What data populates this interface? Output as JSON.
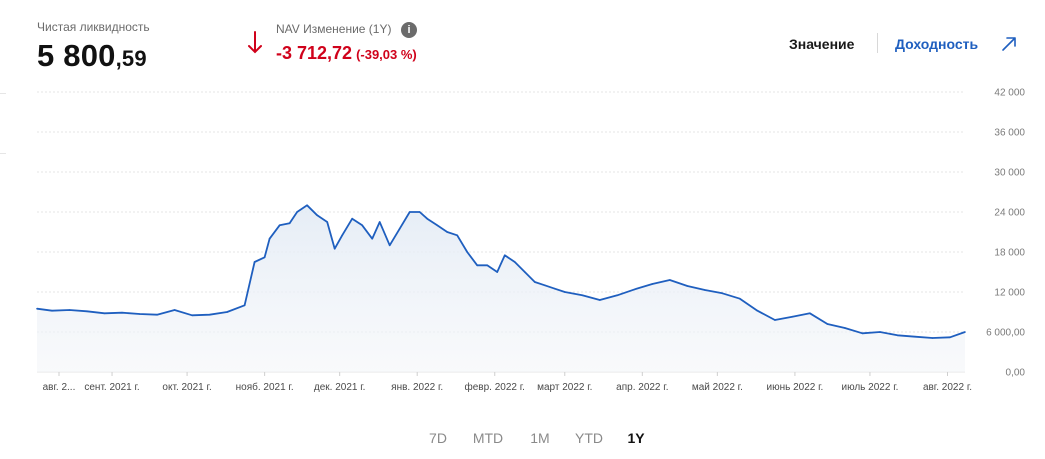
{
  "header": {
    "liquidity_label": "Чистая ликвидность",
    "liquidity_int": "5 800",
    "liquidity_dec": ",59",
    "nav_label": "NAV Изменение (1Y)",
    "info_icon": "info-icon",
    "nav_change": "-3 712,72",
    "nav_change_pct": "(-39,03 %)",
    "change_color": "#d0021b"
  },
  "tabs": {
    "value_label": "Значение",
    "yield_label": "Доходность",
    "external_icon": "external-link-icon",
    "accent": "#1f5fbf"
  },
  "ranges": [
    {
      "label": "7D",
      "active": false
    },
    {
      "label": "MTD",
      "active": false
    },
    {
      "label": "1M",
      "active": false
    },
    {
      "label": "YTD",
      "active": false
    },
    {
      "label": "1Y",
      "active": true
    }
  ],
  "chart_data": {
    "type": "area",
    "line_color": "#1f5fbf",
    "y_ticks": [
      "0,00",
      "6 000,00",
      "12 000",
      "18 000",
      "24 000",
      "30 000",
      "36 000",
      "42 000"
    ],
    "y_tick_values": [
      0,
      6000,
      12000,
      18000,
      24000,
      30000,
      36000,
      42000
    ],
    "ylim": [
      0,
      42000
    ],
    "x_ticks": [
      "авг. 2...",
      "сент. 2021 г.",
      "окт. 2021 г.",
      "нояб. 2021 г.",
      "дек. 2021 г.",
      "янв. 2022 г.",
      "февр. 2022 г.",
      "март 2022 г.",
      "апр. 2022 г.",
      "май 2022 г.",
      "июнь 2022 г.",
      "июль 2022 г.",
      "авг. 2022 г."
    ],
    "x_tick_values": [
      "2021-08-01",
      "2021-09-01",
      "2021-10-01",
      "2021-11-01",
      "2021-12-01",
      "2022-01-01",
      "2022-02-01",
      "2022-03-01",
      "2022-04-01",
      "2022-05-01",
      "2022-06-01",
      "2022-07-01",
      "2022-08-01"
    ],
    "xlim": [
      "2021-08-02",
      "2022-08-08"
    ],
    "grid": true,
    "series": [
      {
        "x": [
          "2021-08-02",
          "2021-08-08",
          "2021-08-15",
          "2021-08-22",
          "2021-08-29",
          "2021-09-05",
          "2021-09-12",
          "2021-09-19",
          "2021-09-26",
          "2021-10-03",
          "2021-10-10",
          "2021-10-17",
          "2021-10-24",
          "2021-10-28",
          "2021-11-01",
          "2021-11-03",
          "2021-11-07",
          "2021-11-11",
          "2021-11-14",
          "2021-11-18",
          "2021-11-22",
          "2021-11-26",
          "2021-11-29",
          "2021-12-02",
          "2021-12-06",
          "2021-12-10",
          "2021-12-14",
          "2021-12-17",
          "2021-12-21",
          "2021-12-25",
          "2021-12-29",
          "2022-01-02",
          "2022-01-05",
          "2022-01-09",
          "2022-01-13",
          "2022-01-17",
          "2022-01-21",
          "2022-01-25",
          "2022-01-29",
          "2022-02-02",
          "2022-02-05",
          "2022-02-09",
          "2022-02-13",
          "2022-02-17",
          "2022-02-21",
          "2022-02-25",
          "2022-03-01",
          "2022-03-08",
          "2022-03-15",
          "2022-03-22",
          "2022-03-29",
          "2022-04-05",
          "2022-04-12",
          "2022-04-19",
          "2022-04-26",
          "2022-05-03",
          "2022-05-10",
          "2022-05-17",
          "2022-05-24",
          "2022-05-31",
          "2022-06-07",
          "2022-06-14",
          "2022-06-21",
          "2022-06-28",
          "2022-07-05",
          "2022-07-12",
          "2022-07-19",
          "2022-07-26",
          "2022-08-02",
          "2022-08-08"
        ],
        "y": [
          9500,
          9200,
          9300,
          9100,
          8800,
          8900,
          8700,
          8600,
          9300,
          8500,
          8600,
          9000,
          10000,
          16500,
          17200,
          20000,
          22000,
          22300,
          24000,
          25000,
          23500,
          22500,
          18500,
          20500,
          23000,
          22000,
          20000,
          22500,
          19000,
          21500,
          24000,
          24000,
          23000,
          22000,
          21000,
          20500,
          18000,
          16000,
          16000,
          15000,
          17500,
          16500,
          15000,
          13500,
          13000,
          12500,
          12000,
          11500,
          10800,
          11500,
          12400,
          13200,
          13800,
          12900,
          12300,
          11800,
          11000,
          9200,
          7800,
          8300,
          8800,
          7200,
          6600,
          5800,
          6000,
          5500,
          5300,
          5100,
          5200,
          6000
        ]
      }
    ]
  }
}
